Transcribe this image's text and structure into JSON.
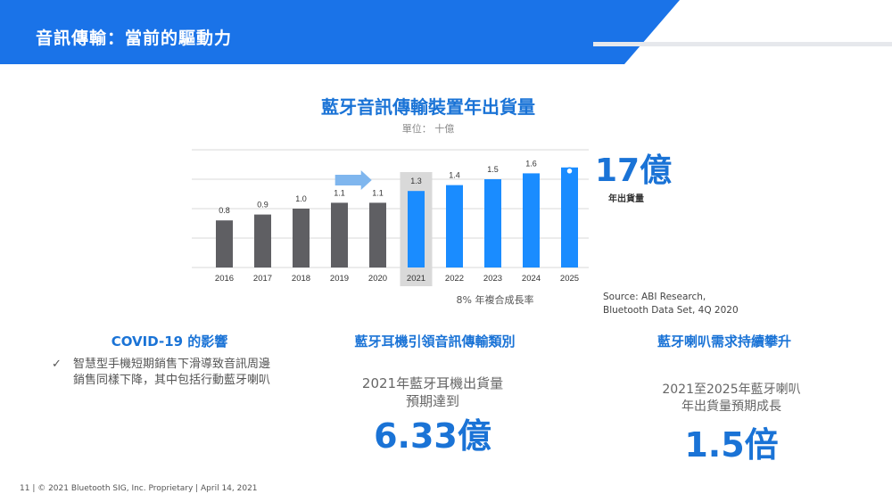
{
  "header": {
    "title": "音訊傳輸：當前的驅動力"
  },
  "chart": {
    "title": "藍牙音訊傳輸裝置年出貨量",
    "unit": "單位： 十億",
    "cagr_note": "8% 年複合成長率",
    "callout_value": "17億",
    "callout_label": "年出貨量",
    "source_line1": "Source: ABI Research,",
    "source_line2": "Bluetooth Data Set, 4Q 2020"
  },
  "chart_data": {
    "type": "bar",
    "title": "藍牙音訊傳輸裝置年出貨量",
    "ylabel": "單位： 十億",
    "categories": [
      "2016",
      "2017",
      "2018",
      "2019",
      "2020",
      "2021",
      "2022",
      "2023",
      "2024",
      "2025"
    ],
    "values": [
      0.8,
      0.9,
      1.0,
      1.1,
      1.1,
      1.3,
      1.4,
      1.5,
      1.6,
      1.7
    ],
    "labels": [
      "0.8",
      "0.9",
      "1.0",
      "1.1",
      "1.1",
      "1.3",
      "1.4",
      "1.5",
      "1.6",
      ""
    ],
    "ylim": [
      0,
      2
    ],
    "grid": true,
    "colors": {
      "historical": "#5f5f63",
      "forecast": "#1a8cff",
      "highlight_bg": "#d9d9d9",
      "arrow": "#7fb6ee"
    },
    "highlight_category": "2021"
  },
  "columns": {
    "left": {
      "title": "COVID-19 的影響",
      "bullet_icon": "check-icon",
      "bullet_mark": "✓",
      "bullet": "智慧型手機短期銷售下滑導致音訊周邊銷售同樣下降，其中包括行動藍牙喇叭"
    },
    "middle": {
      "title": "藍牙耳機引領音訊傳輸類別",
      "desc_line1": "2021年藍牙耳機出貨量",
      "desc_line2": "預期達到",
      "number": "6.33億"
    },
    "right": {
      "title": "藍牙喇叭需求持續攀升",
      "desc_line1": "2021至2025年藍牙喇叭",
      "desc_line2": "年出貨量預期成長",
      "number": "1.5倍"
    }
  },
  "footer": {
    "text": "11   |  © 2021 Bluetooth SIG, Inc. Proprietary  |   April 14, 2021"
  },
  "theme": {
    "accent": "#1a73d6",
    "header_blue": "#1a73e8"
  }
}
